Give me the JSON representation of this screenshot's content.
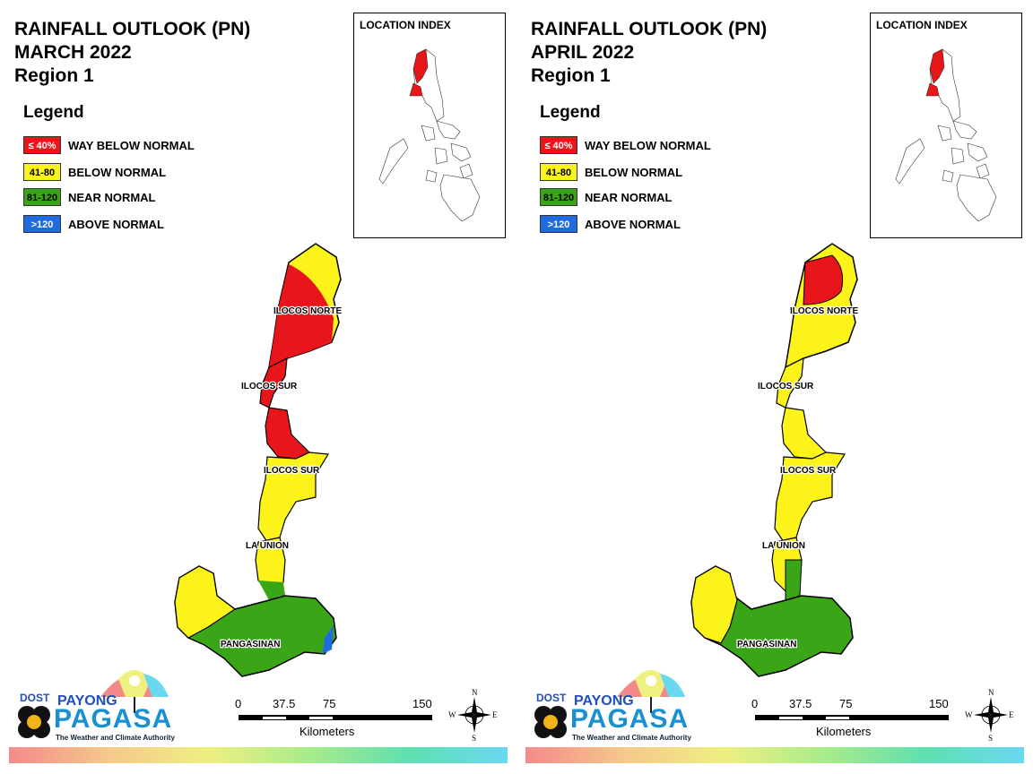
{
  "panels": [
    {
      "title_line1": "RAINFALL OUTLOOK (PN)",
      "title_line2": "MARCH 2022",
      "title_line3": "Region 1",
      "index_title": "LOCATION INDEX",
      "provinces": {
        "ilocos_norte": "ILOCOS NORTE",
        "ilocos_sur_1": "ILOCOS SUR",
        "ilocos_sur_2": "ILOCOS SUR",
        "la_union": "LA UNION",
        "pangasinan": "PANGASINAN"
      },
      "zones": [
        "way_below",
        "below",
        "near",
        "above"
      ]
    },
    {
      "title_line1": "RAINFALL OUTLOOK (PN)",
      "title_line2": "APRIL 2022",
      "title_line3": "Region 1",
      "index_title": "LOCATION INDEX",
      "provinces": {
        "ilocos_norte": "ILOCOS NORTE",
        "ilocos_sur_1": "ILOCOS SUR",
        "ilocos_sur_2": "ILOCOS SUR",
        "la_union": "LA UNION",
        "pangasinan": "PANGASINAN"
      },
      "zones": [
        "way_below",
        "below",
        "near"
      ]
    }
  ],
  "legend": {
    "title": "Legend",
    "items": [
      {
        "range": "≤ 40%",
        "label": "WAY BELOW NORMAL",
        "color": "#e8151b",
        "text_color": "#ffffff"
      },
      {
        "range": "41-80",
        "label": "BELOW NORMAL",
        "color": "#fbf31a",
        "text_color": "#000000"
      },
      {
        "range": "81-120",
        "label": "NEAR NORMAL",
        "color": "#3aa517",
        "text_color": "#000000"
      },
      {
        "range": ">120",
        "label": "ABOVE NORMAL",
        "color": "#1e6ce0",
        "text_color": "#ffffff"
      }
    ]
  },
  "scale": {
    "t0": "0",
    "t1": "37.5",
    "t2": "75",
    "t3": "150",
    "unit": "Kilometers"
  },
  "compass": {
    "n": "N",
    "s": "S",
    "e": "E",
    "w": "W"
  },
  "logo": {
    "dost": "DOST",
    "payong": "PAYONG",
    "pagasa": "PAGASA",
    "tagline": "The Weather and Climate Authority"
  },
  "colors": {
    "way_below": "#e8151b",
    "below": "#fbf31a",
    "near": "#3aa517",
    "above": "#1e6ce0"
  }
}
